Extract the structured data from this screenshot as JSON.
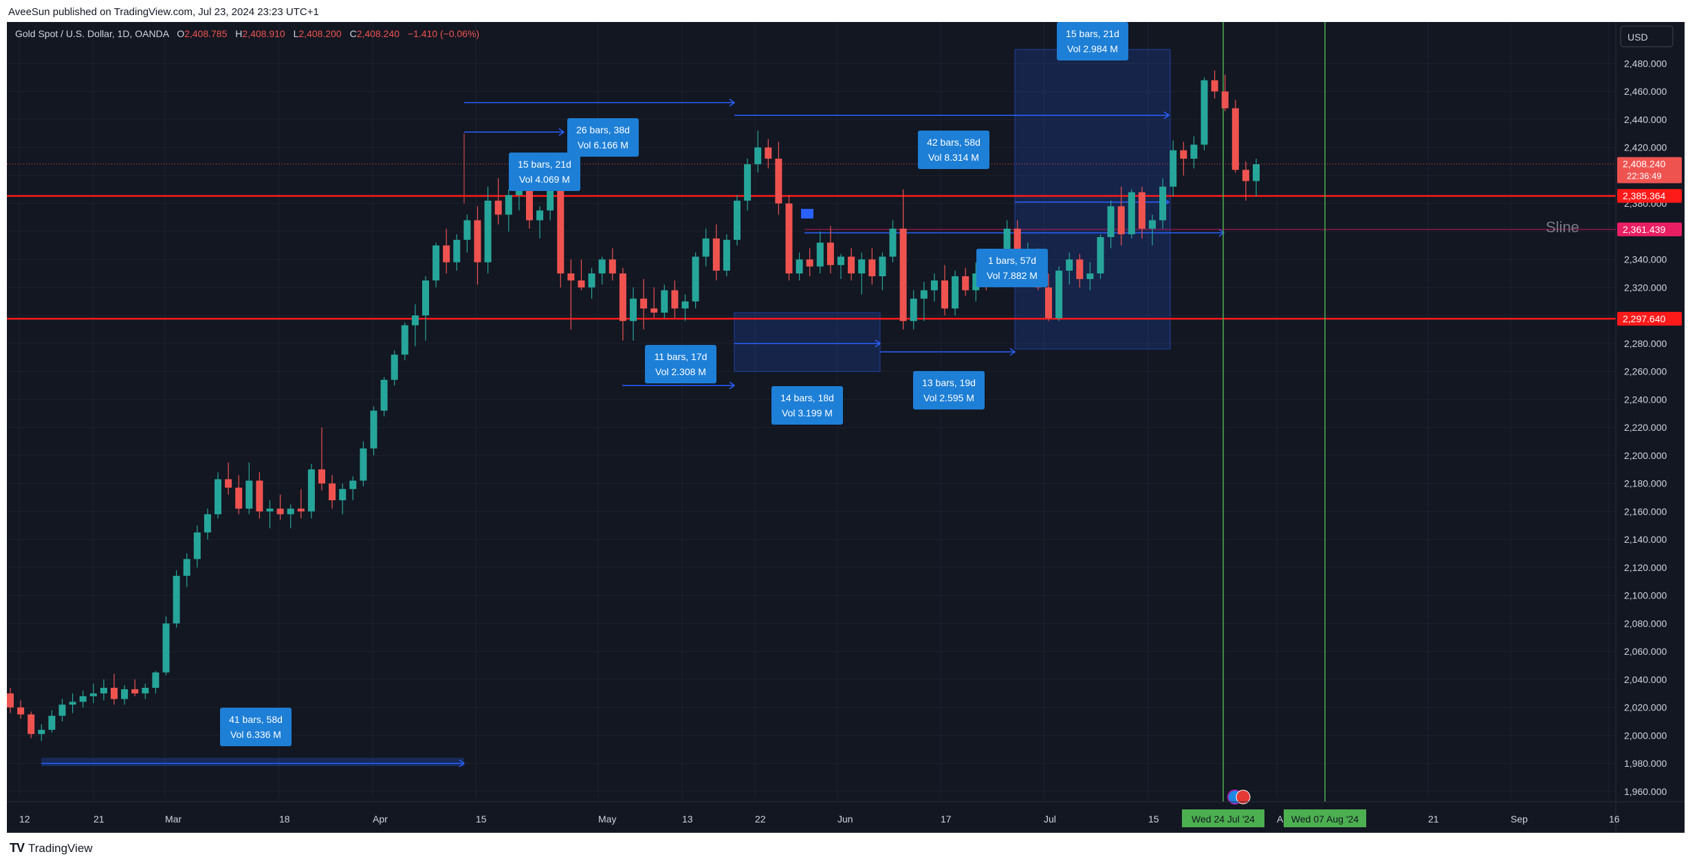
{
  "header": {
    "published": "AveeSun published on TradingView.com, Jul 23, 2024 23:23 UTC+1"
  },
  "footer": {
    "brand": "TradingView"
  },
  "symbol_line": {
    "name": "Gold Spot / U.S. Dollar, 1D, OANDA",
    "o_label": "O",
    "o": "2,408.785",
    "h_label": "H",
    "h": "2,408.910",
    "l_label": "L",
    "l": "2,408.200",
    "c_label": "C",
    "c": "2,408.240",
    "change": "−1.410 (−0.06%)"
  },
  "currency": "USD",
  "colors": {
    "bg": "#131722",
    "up": "#26a69a",
    "down": "#ef5350",
    "grid": "#1e222d",
    "axis_text": "#d1d4dc",
    "hline": "#f23645",
    "vline": "#4caf50",
    "box": "#2962ff",
    "label": "#1e7fd6"
  },
  "chart_data": {
    "type": "candlestick",
    "ylim": [
      1955,
      2490
    ],
    "x_ticks": [
      "12",
      "21",
      "Mar",
      "18",
      "Apr",
      "15",
      "May",
      "13",
      "22",
      "Jun",
      "17",
      "Jul",
      "15",
      "A",
      "21",
      "Sep",
      "16"
    ],
    "y_ticks": [
      "2,480.000",
      "2,460.000",
      "2,440.000",
      "2,420.000",
      "2,400.000",
      "2,380.000",
      "2,360.000",
      "2,340.000",
      "2,320.000",
      "2,300.000",
      "2,280.000",
      "2,260.000",
      "2,240.000",
      "2,220.000",
      "2,200.000",
      "2,180.000",
      "2,160.000",
      "2,140.000",
      "2,120.000",
      "2,100.000",
      "2,080.000",
      "2,060.000",
      "2,040.000",
      "2,020.000",
      "2,000.000",
      "1,980.000",
      "1,960.000"
    ],
    "candles": [
      [
        2030,
        2034,
        2016,
        2020
      ],
      [
        2020,
        2025,
        2012,
        2015
      ],
      [
        2015,
        2017,
        1998,
        2001
      ],
      [
        2001,
        2008,
        1996,
        2004
      ],
      [
        2004,
        2018,
        2002,
        2014
      ],
      [
        2014,
        2026,
        2010,
        2022
      ],
      [
        2022,
        2030,
        2016,
        2024
      ],
      [
        2024,
        2032,
        2020,
        2028
      ],
      [
        2028,
        2037,
        2023,
        2030
      ],
      [
        2030,
        2040,
        2025,
        2034
      ],
      [
        2034,
        2044,
        2022,
        2026
      ],
      [
        2026,
        2036,
        2022,
        2033
      ],
      [
        2033,
        2040,
        2028,
        2030
      ],
      [
        2030,
        2037,
        2026,
        2034
      ],
      [
        2034,
        2046,
        2030,
        2045
      ],
      [
        2045,
        2085,
        2043,
        2080
      ],
      [
        2080,
        2118,
        2077,
        2114
      ],
      [
        2114,
        2130,
        2106,
        2126
      ],
      [
        2126,
        2150,
        2120,
        2145
      ],
      [
        2145,
        2162,
        2140,
        2158
      ],
      [
        2158,
        2188,
        2155,
        2183
      ],
      [
        2183,
        2195,
        2172,
        2177
      ],
      [
        2177,
        2186,
        2158,
        2162
      ],
      [
        2162,
        2195,
        2158,
        2182
      ],
      [
        2182,
        2188,
        2155,
        2160
      ],
      [
        2160,
        2168,
        2148,
        2162
      ],
      [
        2162,
        2172,
        2154,
        2158
      ],
      [
        2158,
        2165,
        2148,
        2162
      ],
      [
        2162,
        2176,
        2155,
        2160
      ],
      [
        2160,
        2194,
        2155,
        2190
      ],
      [
        2190,
        2220,
        2175,
        2180
      ],
      [
        2180,
        2186,
        2162,
        2168
      ],
      [
        2168,
        2180,
        2158,
        2176
      ],
      [
        2176,
        2185,
        2168,
        2182
      ],
      [
        2182,
        2210,
        2178,
        2205
      ],
      [
        2205,
        2235,
        2200,
        2232
      ],
      [
        2232,
        2256,
        2228,
        2254
      ],
      [
        2254,
        2275,
        2250,
        2272
      ],
      [
        2272,
        2295,
        2268,
        2293
      ],
      [
        2293,
        2308,
        2278,
        2300
      ],
      [
        2300,
        2328,
        2282,
        2325
      ],
      [
        2325,
        2352,
        2320,
        2350
      ],
      [
        2350,
        2362,
        2330,
        2338
      ],
      [
        2338,
        2358,
        2332,
        2354
      ],
      [
        2354,
        2372,
        2345,
        2368
      ],
      [
        2368,
        2378,
        2322,
        2338
      ],
      [
        2338,
        2392,
        2330,
        2382
      ],
      [
        2382,
        2398,
        2365,
        2372
      ],
      [
        2372,
        2390,
        2360,
        2386
      ],
      [
        2386,
        2402,
        2375,
        2392
      ],
      [
        2392,
        2395,
        2362,
        2368
      ],
      [
        2368,
        2378,
        2355,
        2375
      ],
      [
        2375,
        2392,
        2368,
        2390
      ],
      [
        2390,
        2400,
        2320,
        2330
      ],
      [
        2330,
        2340,
        2290,
        2325
      ],
      [
        2325,
        2340,
        2318,
        2320
      ],
      [
        2320,
        2334,
        2312,
        2330
      ],
      [
        2330,
        2342,
        2322,
        2340
      ],
      [
        2340,
        2348,
        2325,
        2330
      ],
      [
        2330,
        2334,
        2282,
        2296
      ],
      [
        2296,
        2320,
        2282,
        2312
      ],
      [
        2312,
        2326,
        2290,
        2305
      ],
      [
        2305,
        2320,
        2298,
        2302
      ],
      [
        2302,
        2322,
        2298,
        2318
      ],
      [
        2318,
        2325,
        2298,
        2305
      ],
      [
        2305,
        2315,
        2296,
        2310
      ],
      [
        2310,
        2345,
        2305,
        2342
      ],
      [
        2342,
        2362,
        2335,
        2355
      ],
      [
        2355,
        2365,
        2325,
        2332
      ],
      [
        2332,
        2358,
        2328,
        2354
      ],
      [
        2354,
        2386,
        2350,
        2382
      ],
      [
        2382,
        2412,
        2375,
        2408
      ],
      [
        2408,
        2432,
        2402,
        2420
      ],
      [
        2420,
        2426,
        2405,
        2412
      ],
      [
        2412,
        2424,
        2372,
        2380
      ],
      [
        2380,
        2386,
        2325,
        2330
      ],
      [
        2330,
        2345,
        2325,
        2340
      ],
      [
        2340,
        2348,
        2328,
        2335
      ],
      [
        2335,
        2360,
        2330,
        2352
      ],
      [
        2352,
        2364,
        2330,
        2336
      ],
      [
        2336,
        2344,
        2326,
        2342
      ],
      [
        2342,
        2348,
        2325,
        2330
      ],
      [
        2330,
        2345,
        2315,
        2340
      ],
      [
        2340,
        2348,
        2322,
        2328
      ],
      [
        2328,
        2345,
        2318,
        2342
      ],
      [
        2342,
        2368,
        2338,
        2362
      ],
      [
        2362,
        2390,
        2290,
        2296
      ],
      [
        2296,
        2318,
        2290,
        2312
      ],
      [
        2312,
        2324,
        2296,
        2318
      ],
      [
        2318,
        2330,
        2310,
        2325
      ],
      [
        2325,
        2336,
        2300,
        2305
      ],
      [
        2305,
        2332,
        2300,
        2328
      ],
      [
        2328,
        2334,
        2314,
        2318
      ],
      [
        2318,
        2338,
        2310,
        2330
      ],
      [
        2330,
        2335,
        2318,
        2326
      ],
      [
        2326,
        2340,
        2320,
        2328
      ],
      [
        2328,
        2368,
        2324,
        2362
      ],
      [
        2362,
        2368,
        2325,
        2330
      ],
      [
        2330,
        2352,
        2325,
        2342
      ],
      [
        2342,
        2348,
        2318,
        2320
      ],
      [
        2320,
        2330,
        2296,
        2298
      ],
      [
        2298,
        2335,
        2296,
        2332
      ],
      [
        2332,
        2345,
        2322,
        2340
      ],
      [
        2340,
        2344,
        2320,
        2326
      ],
      [
        2326,
        2338,
        2318,
        2330
      ],
      [
        2330,
        2358,
        2326,
        2356
      ],
      [
        2356,
        2382,
        2348,
        2378
      ],
      [
        2378,
        2392,
        2350,
        2358
      ],
      [
        2358,
        2390,
        2355,
        2388
      ],
      [
        2388,
        2392,
        2355,
        2362
      ],
      [
        2362,
        2372,
        2350,
        2368
      ],
      [
        2368,
        2398,
        2362,
        2392
      ],
      [
        2392,
        2425,
        2385,
        2418
      ],
      [
        2418,
        2424,
        2400,
        2412
      ],
      [
        2412,
        2428,
        2405,
        2422
      ],
      [
        2422,
        2470,
        2418,
        2468
      ],
      [
        2468,
        2475,
        2455,
        2460
      ],
      [
        2460,
        2472,
        2446,
        2448
      ],
      [
        2448,
        2454,
        2402,
        2404
      ],
      [
        2404,
        2410,
        2382,
        2396
      ],
      [
        2396,
        2412,
        2385,
        2408
      ]
    ],
    "horizontal_levels": [
      {
        "value": 2385.364,
        "label": "2,385.364"
      },
      {
        "value": 2297.64,
        "label": "2,297.640"
      }
    ],
    "sline": {
      "value": 2361.439,
      "label": "2,361.439",
      "text": "Sline"
    },
    "last_price": {
      "value": 2408.24,
      "label": "2,408.240",
      "countdown": "22:36:49"
    },
    "vertical_lines": [
      "Wed 24 Jul '24",
      "Wed 07 Aug '24"
    ],
    "measure_labels": [
      {
        "bars": "41 bars, 58d",
        "vol": "Vol 6.336 M"
      },
      {
        "bars": "15 bars, 21d",
        "vol": "Vol 4.069 M"
      },
      {
        "bars": "26 bars, 38d",
        "vol": "Vol 6.166 M"
      },
      {
        "bars": "11 bars, 17d",
        "vol": "Vol 2.308 M"
      },
      {
        "bars": "14 bars, 18d",
        "vol": "Vol 3.199 M"
      },
      {
        "bars": "42 bars, 58d",
        "vol": "Vol 8.314 M"
      },
      {
        "bars": "13 bars, 19d",
        "vol": "Vol 2.595 M"
      },
      {
        "bars": "1 bars, 57d",
        "vol": "Vol 7.882 M"
      },
      {
        "bars": "15 bars, 21d",
        "vol": "Vol 2.984 M"
      }
    ]
  }
}
